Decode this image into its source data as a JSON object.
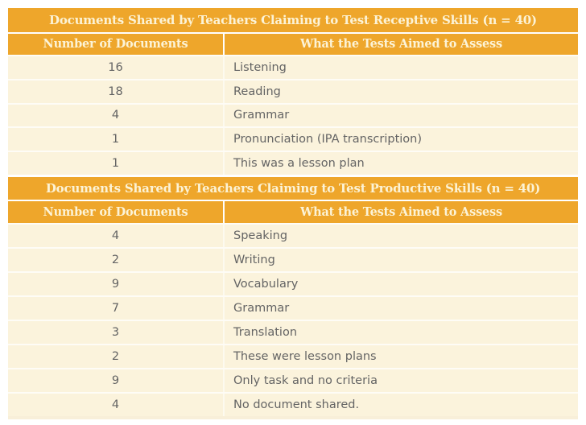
{
  "colors": {
    "gold": "#EEA62B",
    "header_text": "#FCF3D6",
    "row_background": "#FBF3DC",
    "row_text": "#646464",
    "page_background": "#FFFFFF",
    "bottom_strip": "#F8EFD9"
  },
  "tables": [
    {
      "title": "Documents Shared by Teachers Claiming to Test Receptive Skills (n = 40)",
      "columns": [
        "Number of Documents",
        "What the Tests Aimed to Assess"
      ],
      "rows": [
        {
          "count": "16",
          "label": "Listening"
        },
        {
          "count": "18",
          "label": "Reading"
        },
        {
          "count": "4",
          "label": "Grammar"
        },
        {
          "count": "1",
          "label": "Pronunciation (IPA transcription)"
        },
        {
          "count": "1",
          "label": "This was a lesson plan"
        }
      ]
    },
    {
      "title": "Documents Shared by Teachers Claiming to Test Productive Skills (n = 40)",
      "columns": [
        "Number of Documents",
        "What the Tests Aimed to Assess"
      ],
      "rows": [
        {
          "count": "4",
          "label": "Speaking"
        },
        {
          "count": "2",
          "label": "Writing"
        },
        {
          "count": "9",
          "label": "Vocabulary"
        },
        {
          "count": "7",
          "label": "Grammar"
        },
        {
          "count": "3",
          "label": "Translation"
        },
        {
          "count": "2",
          "label": "These were lesson plans"
        },
        {
          "count": "9",
          "label": "Only task and no criteria"
        },
        {
          "count": "4",
          "label": "No document shared."
        }
      ]
    }
  ]
}
